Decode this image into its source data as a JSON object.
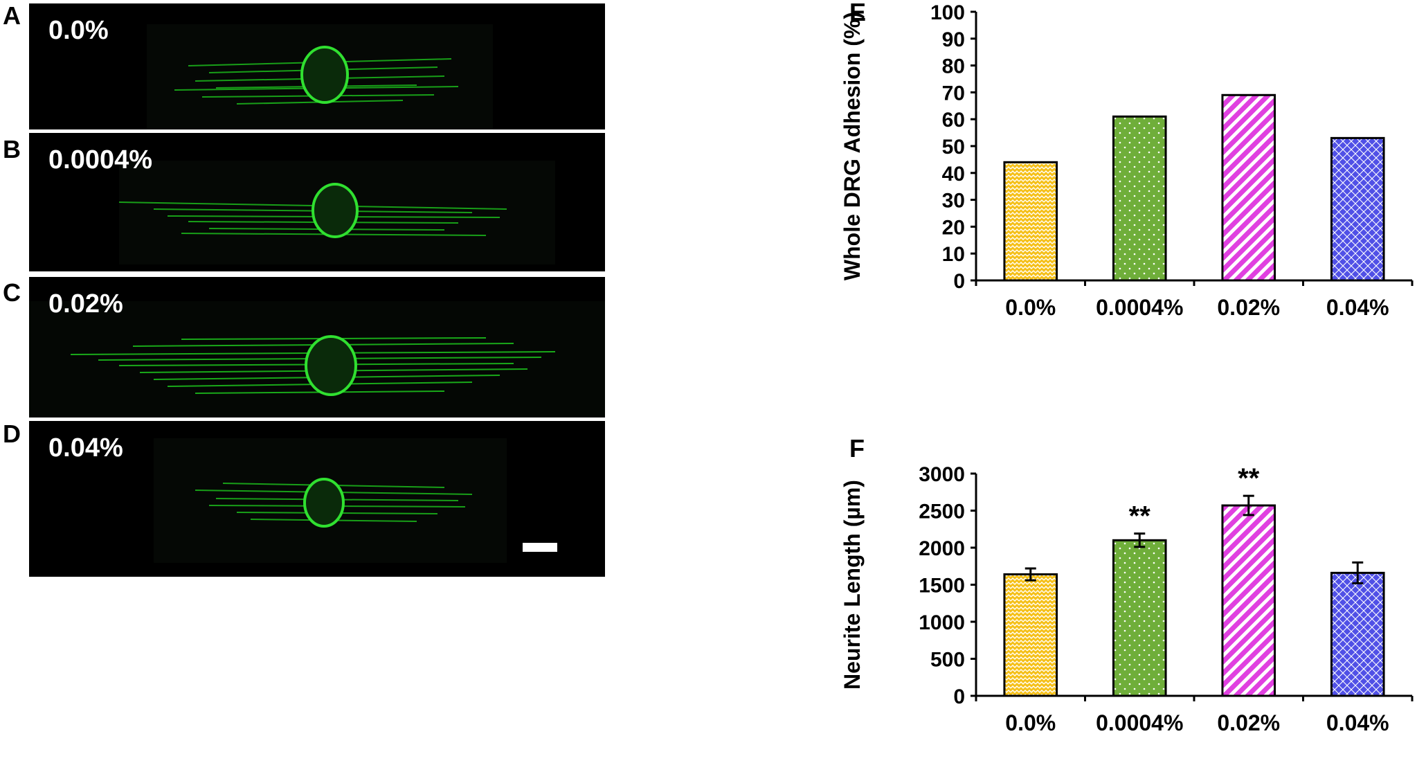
{
  "panels": {
    "A": {
      "letter": "A",
      "label": "0.0%"
    },
    "B": {
      "letter": "B",
      "label": "0.0004%"
    },
    "C": {
      "letter": "C",
      "label": "0.02%"
    },
    "D": {
      "letter": "D",
      "label": "0.04%"
    },
    "E": {
      "letter": "E"
    },
    "F": {
      "letter": "F"
    }
  },
  "colors": {
    "yellow": "#F5C018",
    "green": "#6FAE3A",
    "magenta": "#E040E0",
    "blue": "#5050E6",
    "fluorescence": "#1FD21F"
  },
  "chart_data": [
    {
      "type": "bar",
      "panel": "E",
      "categories": [
        "0.0%",
        "0.0004%",
        "0.02%",
        "0.04%"
      ],
      "values": [
        44,
        61,
        69,
        53
      ],
      "ylabel": "Whole DRG Adhesion (%)",
      "xlabel": "",
      "ylim": [
        0,
        100
      ],
      "yticks": [
        0,
        10,
        20,
        30,
        40,
        50,
        60,
        70,
        80,
        90,
        100
      ],
      "patterns": [
        "zigzag",
        "dots",
        "diagonal-stripes",
        "crosshatch"
      ],
      "grid": false
    },
    {
      "type": "bar",
      "panel": "F",
      "categories": [
        "0.0%",
        "0.0004%",
        "0.02%",
        "0.04%"
      ],
      "values": [
        1640,
        2100,
        2570,
        1660
      ],
      "errors": [
        80,
        90,
        130,
        140
      ],
      "annotations": [
        "",
        "**",
        "**",
        ""
      ],
      "ylabel": "Neurite Length (µm)",
      "xlabel": "",
      "ylim": [
        0,
        3000
      ],
      "yticks": [
        0,
        500,
        1000,
        1500,
        2000,
        2500,
        3000
      ],
      "patterns": [
        "zigzag",
        "dots",
        "diagonal-stripes",
        "crosshatch"
      ],
      "grid": false
    }
  ]
}
